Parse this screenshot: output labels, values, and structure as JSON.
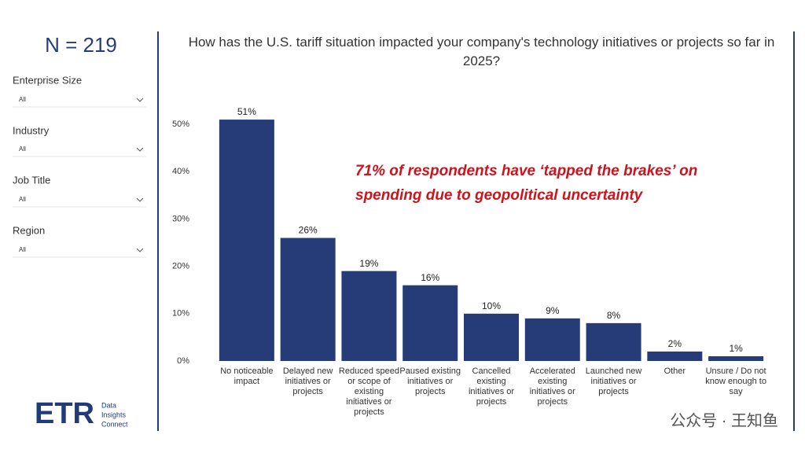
{
  "sidebar": {
    "sample": "N = 219",
    "filters": [
      {
        "label": "Enterprise Size",
        "value": "All"
      },
      {
        "label": "Industry",
        "value": "All"
      },
      {
        "label": "Job Title",
        "value": "All"
      },
      {
        "label": "Region",
        "value": "All"
      }
    ]
  },
  "logo": {
    "mark": "ETR",
    "lines": [
      "Data",
      "Insights",
      "Connect"
    ]
  },
  "watermark": "公众号 · 王知鱼",
  "chart_data": {
    "type": "bar",
    "title": "How has the U.S. tariff situation impacted your company's technology initiatives or projects so far in 2025?",
    "annotation": "71% of respondents have ‘tapped the brakes’ on spending due to geopolitical uncertainty",
    "categories": [
      "No noticeable impact",
      "Delayed new initiatives or projects",
      "Reduced speed or scope of existing initiatives or projects",
      "Paused existing initiatives or projects",
      "Cancelled existing initiatives or projects",
      "Accelerated existing initiatives or projects",
      "Launched new initiatives or projects",
      "Other",
      "Unsure / Do not know enough to say"
    ],
    "values": [
      51,
      26,
      19,
      16,
      10,
      9,
      8,
      2,
      1
    ],
    "value_labels": [
      "51%",
      "26%",
      "19%",
      "16%",
      "10%",
      "9%",
      "8%",
      "2%",
      "1%"
    ],
    "color": "#253c78",
    "ylim": [
      0,
      55
    ],
    "yticks": [
      {
        "value": 0,
        "label": "0%"
      },
      {
        "value": 10,
        "label": "10%"
      },
      {
        "value": 20,
        "label": "20%"
      },
      {
        "value": 30,
        "label": "30%"
      },
      {
        "value": 40,
        "label": "40%"
      },
      {
        "value": 50,
        "label": "50%"
      }
    ],
    "grid": false
  }
}
